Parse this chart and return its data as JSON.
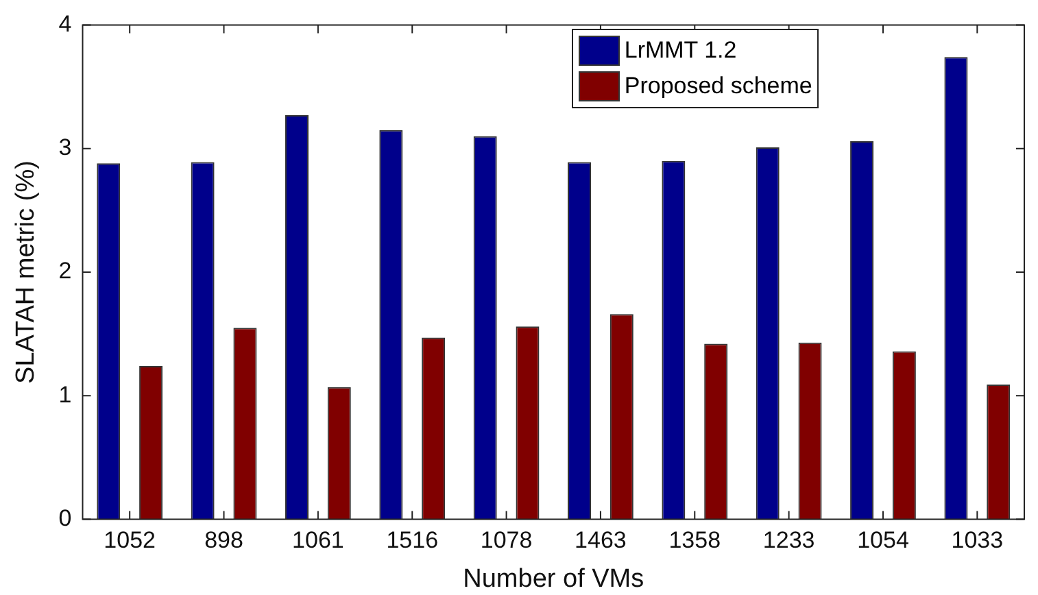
{
  "chart_data": {
    "type": "bar",
    "xlabel": "Number of VMs",
    "ylabel": "SLATAH metric (%)",
    "categories": [
      "1052",
      "898",
      "1061",
      "1516",
      "1078",
      "1463",
      "1358",
      "1233",
      "1054",
      "1033"
    ],
    "series": [
      {
        "name": "LrMMT 1.2",
        "color": "#00008b",
        "values": [
          2.88,
          2.89,
          3.27,
          3.15,
          3.1,
          2.89,
          2.9,
          3.01,
          3.06,
          3.74
        ]
      },
      {
        "name": "Proposed scheme",
        "color": "#800000",
        "values": [
          1.24,
          1.55,
          1.07,
          1.47,
          1.56,
          1.66,
          1.42,
          1.43,
          1.36,
          1.09
        ]
      }
    ],
    "ylim": [
      0,
      4
    ],
    "yticks": [
      0,
      1,
      2,
      3,
      4
    ],
    "grid": false,
    "legend": "top right"
  }
}
